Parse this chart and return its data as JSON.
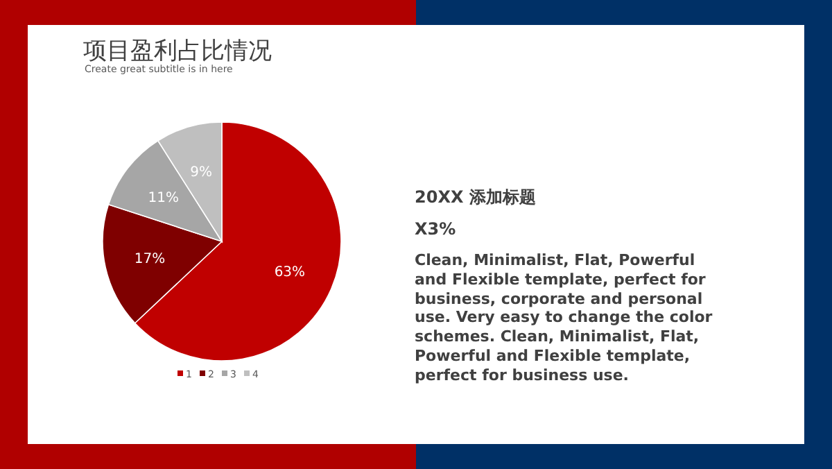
{
  "chart_data": {
    "type": "pie",
    "title": "项目盈利占比情况",
    "subtitle": "Create great subtitle is in here",
    "categories": [
      "1",
      "2",
      "3",
      "4"
    ],
    "values": [
      63,
      17,
      11,
      9
    ],
    "colors": [
      "#c00000",
      "#7f0000",
      "#a6a6a6",
      "#bfbfbf"
    ],
    "value_labels": [
      "63%",
      "17%",
      "11%",
      "9%"
    ],
    "legend": "bottom",
    "annotations": [
      "20XX 添加标题",
      "X3%",
      "Clean, Minimalist, Flat, Powerful and Flexible template, perfect for business, corporate and personal use. Very easy to change the color schemes. Clean, Minimalist, Flat, Powerful and Flexible template, perfect for business use."
    ]
  }
}
